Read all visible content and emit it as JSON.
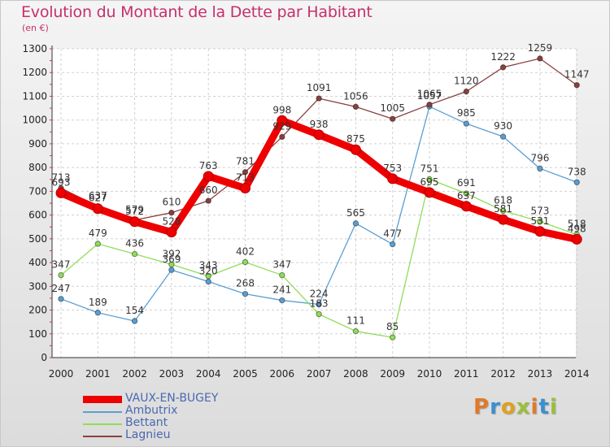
{
  "header": {
    "title": "Evolution du Montant de la Dette par Habitant",
    "unit": "(en €)"
  },
  "brand": {
    "text": "Proxiti",
    "colors": [
      "#e07a2a",
      "#3a8fd0",
      "#e0a020",
      "#9ac03a",
      "#e07a2a",
      "#3a8fd0",
      "#9ac03a"
    ]
  },
  "chart_data": {
    "type": "line",
    "title": "Evolution du Montant de la Dette par Habitant",
    "subtitle": "(en €)",
    "xlabel": "",
    "ylabel": "",
    "ylim": [
      0,
      1300
    ],
    "yticks": [
      0,
      100,
      200,
      300,
      400,
      500,
      600,
      700,
      800,
      900,
      1000,
      1100,
      1200,
      1300
    ],
    "grid": true,
    "legend_position": "bottom-left",
    "x": [
      "2000",
      "2001",
      "2002",
      "2003",
      "2004",
      "2005",
      "2006",
      "2007",
      "2008",
      "2009",
      "2010",
      "2011",
      "2012",
      "2013",
      "2014"
    ],
    "series": [
      {
        "name": "VAUX-EN-BUGEY",
        "color": "#ee0000",
        "emphasis": true,
        "values": [
          693,
          627,
          572,
          528,
          763,
          713,
          998,
          938,
          875,
          753,
          695,
          637,
          581,
          531,
          498
        ]
      },
      {
        "name": "Ambutrix",
        "color": "#5a9fd4",
        "values": [
          247,
          189,
          154,
          369,
          320,
          268,
          241,
          224,
          565,
          477,
          1057,
          985,
          930,
          796,
          738
        ]
      },
      {
        "name": "Bettant",
        "color": "#90dd58",
        "values": [
          347,
          479,
          436,
          392,
          343,
          402,
          347,
          183,
          111,
          85,
          751,
          691,
          618,
          573,
          518
        ]
      },
      {
        "name": "Lagnieu",
        "color": "#8a4040",
        "values": [
          713,
          637,
          579,
          610,
          660,
          781,
          929,
          1091,
          1056,
          1005,
          1065,
          1120,
          1222,
          1259,
          1147
        ]
      }
    ]
  }
}
